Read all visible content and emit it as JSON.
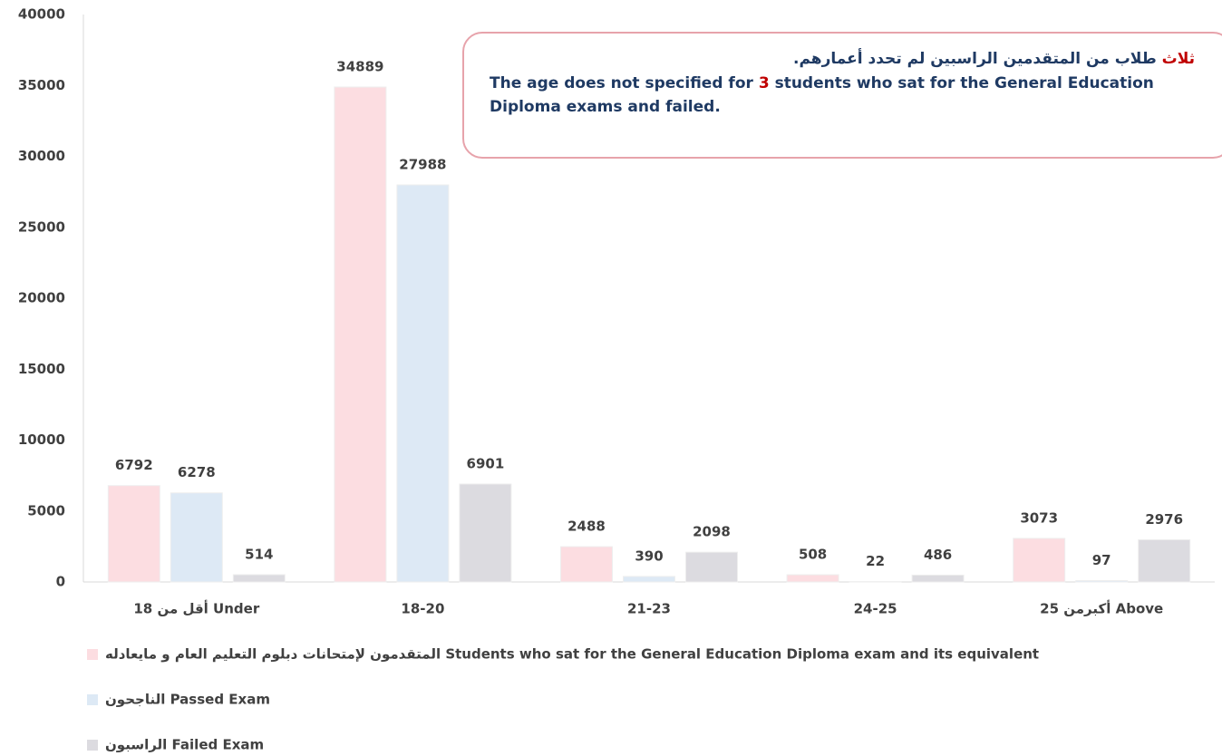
{
  "chart_data": {
    "type": "bar",
    "categories": [
      "أقل من 18 Under",
      "18-20",
      "21-23",
      "24-25",
      "أكبرمن 25 Above"
    ],
    "series": [
      {
        "name": "المتقدمون لإمتحانات دبلوم التعليم العام و مايعادله Students who sat for the General Education Diploma exam and its equivalent",
        "color": "#fcdde1",
        "values": [
          6792,
          34889,
          2488,
          508,
          3073
        ]
      },
      {
        "name": "الناجحون Passed Exam",
        "color": "#dde9f5",
        "values": [
          6278,
          27988,
          390,
          22,
          97
        ]
      },
      {
        "name": "الراسبون Failed Exam",
        "color": "#dcdbe0",
        "values": [
          514,
          6901,
          2098,
          486,
          2976
        ]
      }
    ],
    "ylim": [
      0,
      40000
    ],
    "yticks": [
      0,
      5000,
      10000,
      15000,
      20000,
      25000,
      30000,
      35000,
      40000
    ],
    "grid": false,
    "annotation": {
      "ar_highlight": "ثلاث",
      "ar_rest": "طلاب من المتقدمين الراسبين لم تحدد أعمارهم.",
      "en_before": "The age does not specified for",
      "en_highlight": "3",
      "en_after": "students who sat for the General Education Diploma exams and failed."
    }
  }
}
